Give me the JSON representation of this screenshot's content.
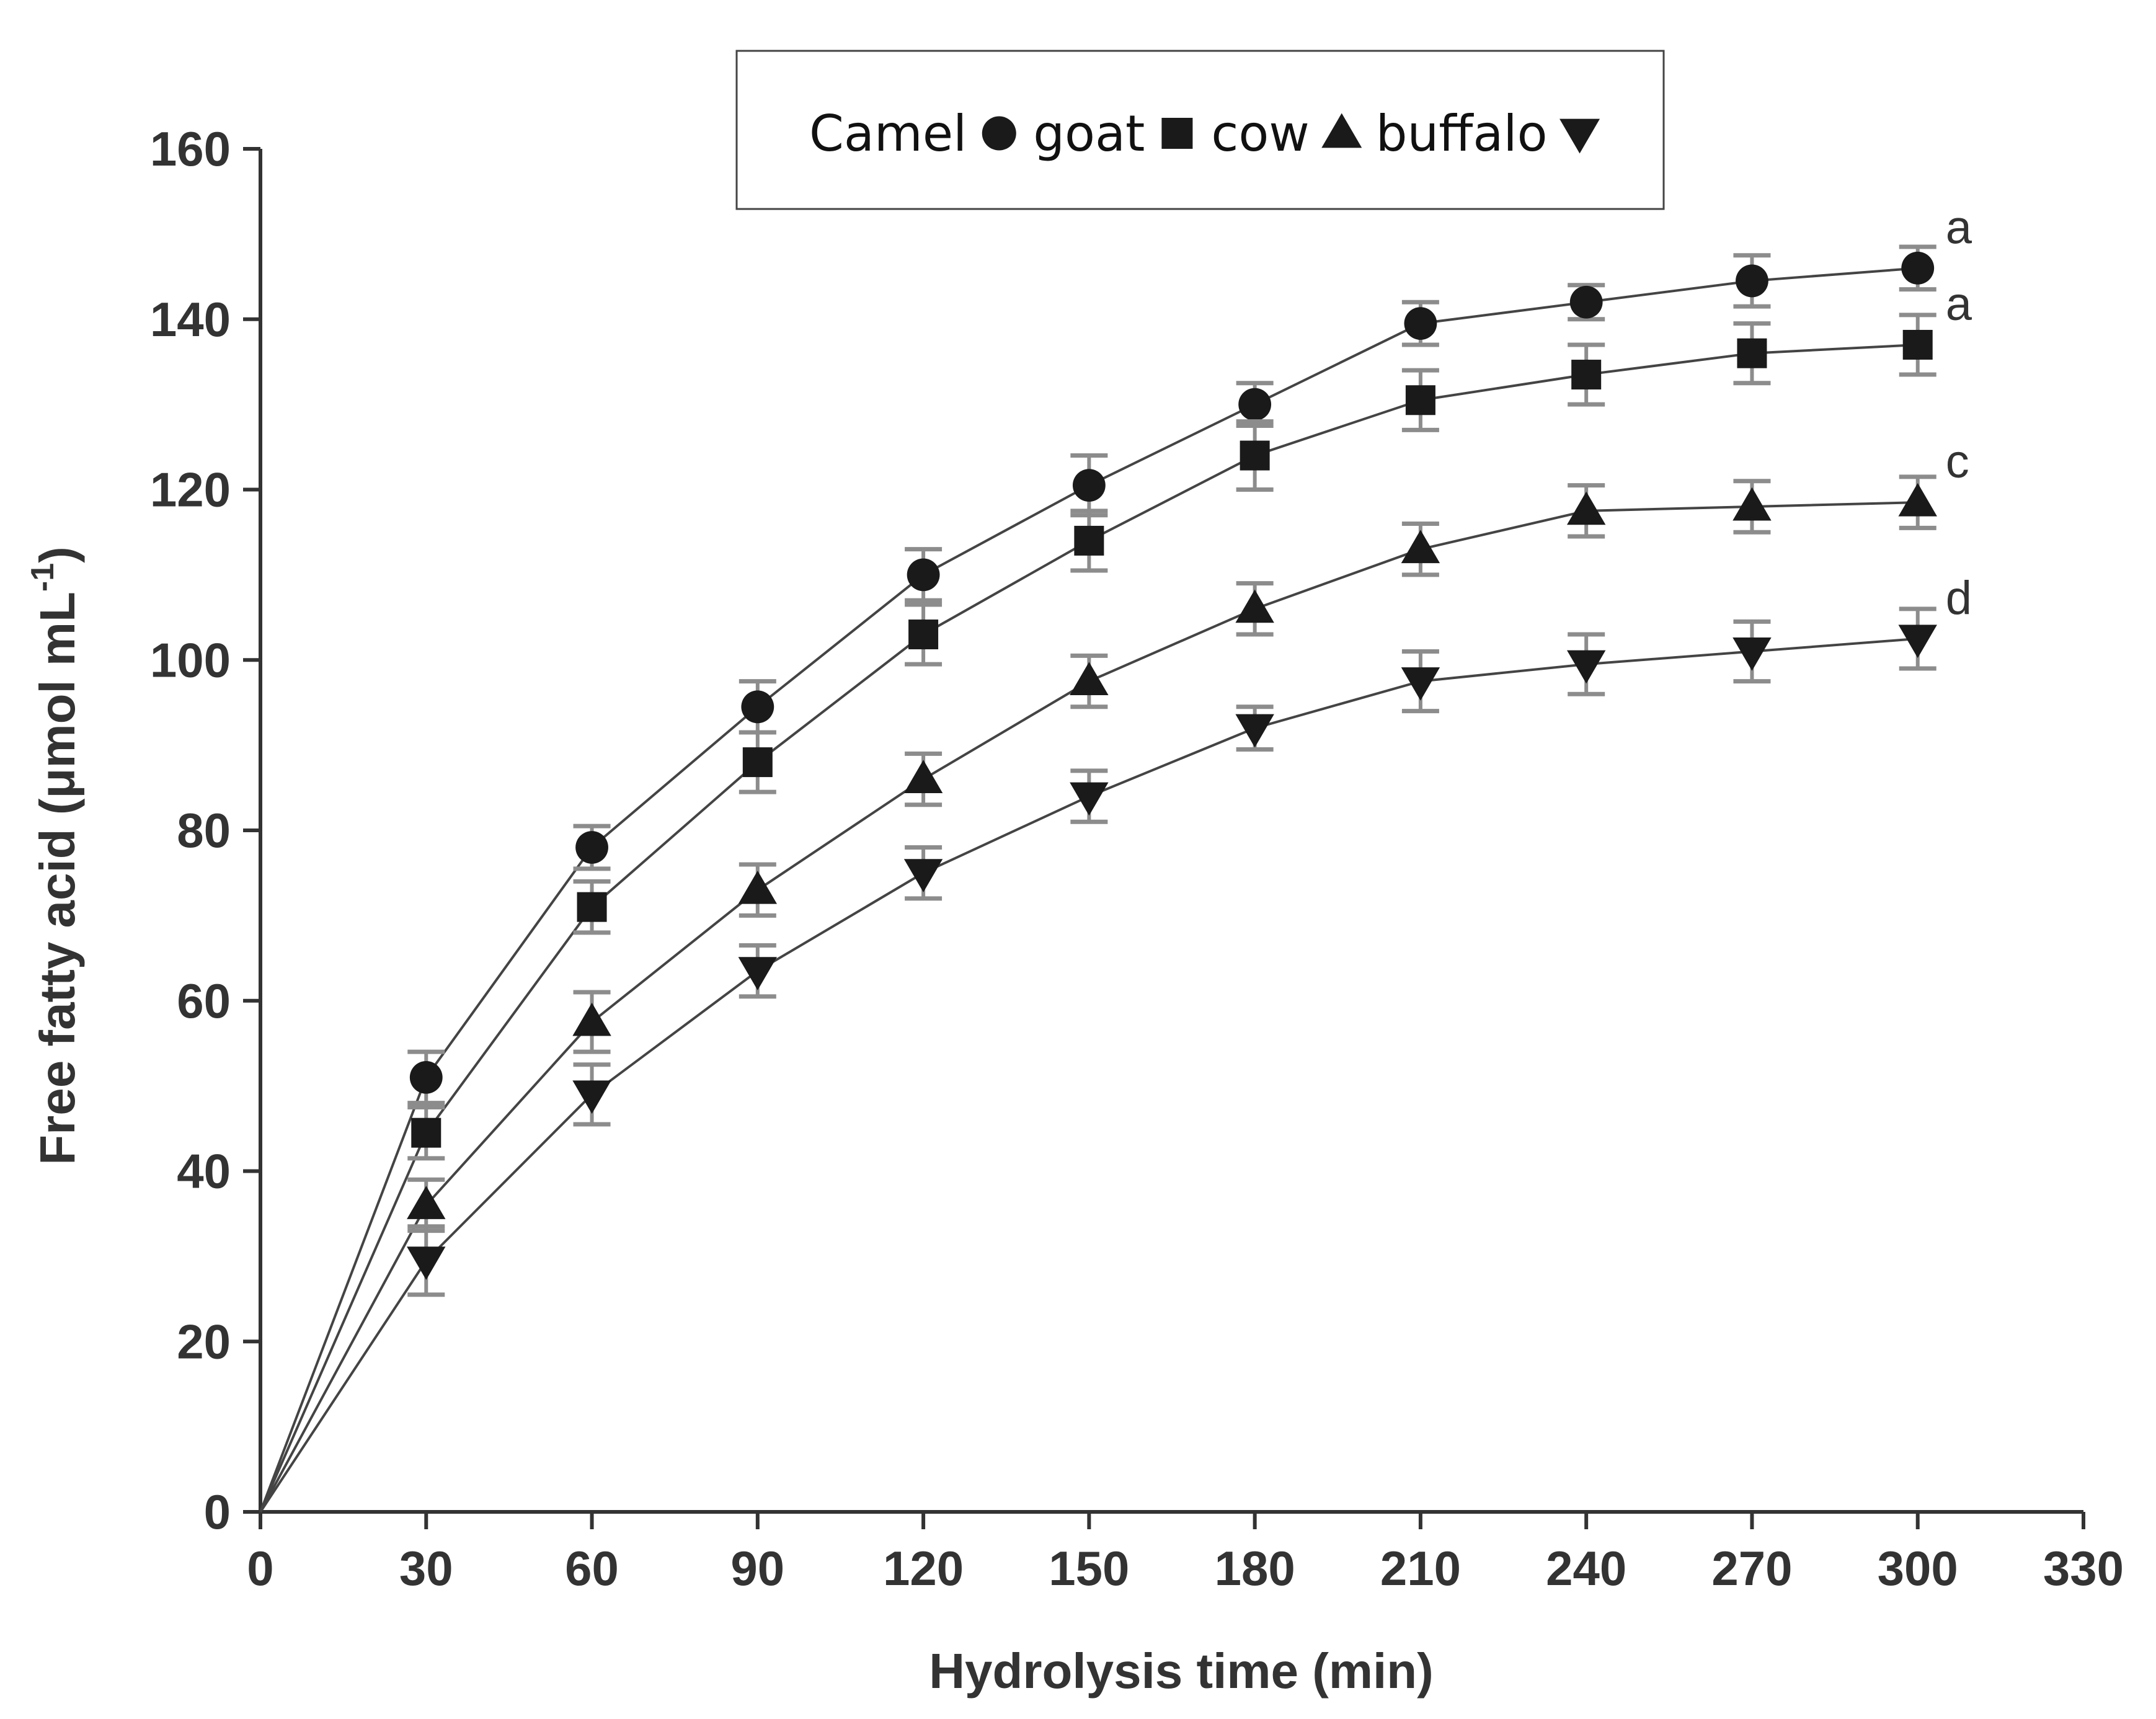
{
  "chart_data": {
    "type": "line",
    "xlabel": "Hydrolysis time (min)",
    "ylabel": "Free fatty acid (μmol mL",
    "ylabel_sup": "-1",
    "ylabel_close": ")",
    "xlim": [
      0,
      330
    ],
    "ylim": [
      0,
      160
    ],
    "xticks": [
      0,
      30,
      60,
      90,
      120,
      150,
      180,
      210,
      240,
      270,
      300,
      330
    ],
    "yticks": [
      0,
      20,
      40,
      60,
      80,
      100,
      120,
      140,
      160
    ],
    "x": [
      0,
      30,
      60,
      90,
      120,
      150,
      180,
      210,
      240,
      270,
      300
    ],
    "grid": false,
    "legend_position": "top-center",
    "series": [
      {
        "name": "Camel",
        "marker": "circle",
        "values": [
          0,
          51,
          78,
          94.5,
          110,
          120.5,
          130,
          139.5,
          142,
          144.5,
          146
        ],
        "errors": [
          0,
          3,
          2.5,
          3,
          3,
          3.5,
          2.5,
          2.5,
          2,
          3,
          2.5
        ],
        "significance": "a"
      },
      {
        "name": "goat",
        "marker": "square",
        "values": [
          0,
          44.5,
          71,
          88,
          103,
          114,
          124,
          130.5,
          133.5,
          136,
          137
        ],
        "errors": [
          0,
          3,
          3,
          3.5,
          3.5,
          3.5,
          4,
          3.5,
          3.5,
          3.5,
          3.5
        ],
        "significance": "a"
      },
      {
        "name": "cow",
        "marker": "triangle-up",
        "values": [
          0,
          36,
          57.5,
          73,
          86,
          97.5,
          106,
          113,
          117.5,
          118,
          118.5
        ],
        "errors": [
          0,
          3,
          3.5,
          3,
          3,
          3,
          3,
          3,
          3,
          3,
          3
        ],
        "significance": "c"
      },
      {
        "name": "buffalo",
        "marker": "triangle-down",
        "values": [
          0,
          29.5,
          49,
          63.5,
          75,
          84,
          92,
          97.5,
          99.5,
          101,
          102.5
        ],
        "errors": [
          0,
          4,
          3.5,
          3,
          3,
          3,
          2.5,
          3.5,
          3.5,
          3.5,
          3.5
        ],
        "significance": "d"
      }
    ],
    "colors": {
      "line": "#444444",
      "marker": "#1a1a1a",
      "errorbar": "#8c8c8c",
      "axis": "#333333"
    }
  }
}
